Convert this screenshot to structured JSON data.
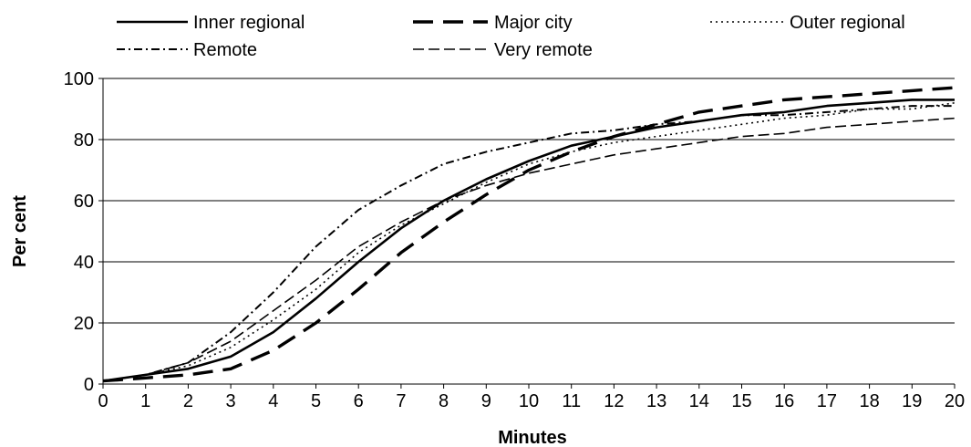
{
  "chart_data": {
    "type": "line",
    "title": "",
    "xlabel": "Minutes",
    "ylabel": "Per cent",
    "xlim": [
      0,
      20
    ],
    "ylim": [
      0,
      100
    ],
    "x_ticks": [
      "0",
      "1",
      "2",
      "3",
      "4",
      "5",
      "6",
      "7",
      "8",
      "9",
      "10",
      "11",
      "12",
      "13",
      "14",
      "15",
      "16",
      "17",
      "18",
      "19",
      "20"
    ],
    "y_ticks": [
      "0",
      "20",
      "40",
      "60",
      "80",
      "100"
    ],
    "grid": "horizontal",
    "legend_position": "top",
    "x": [
      0,
      1,
      2,
      3,
      4,
      5,
      6,
      7,
      8,
      9,
      10,
      11,
      12,
      13,
      14,
      15,
      16,
      17,
      18,
      19,
      20
    ],
    "series": [
      {
        "name": "Inner regional",
        "style": "solid",
        "values": [
          1,
          3,
          5,
          9,
          17,
          28,
          40,
          51,
          60,
          67,
          73,
          78,
          81,
          84,
          86,
          88,
          89,
          91,
          92,
          93,
          93
        ]
      },
      {
        "name": "Major city",
        "style": "long-dash",
        "values": [
          1,
          2,
          3,
          5,
          11,
          20,
          31,
          43,
          53,
          62,
          70,
          76,
          81,
          85,
          89,
          91,
          93,
          94,
          95,
          96,
          97
        ]
      },
      {
        "name": "Outer regional",
        "style": "dotted",
        "values": [
          1,
          3,
          6,
          12,
          21,
          31,
          43,
          52,
          59,
          66,
          72,
          76,
          79,
          81,
          83,
          85,
          87,
          88,
          90,
          90,
          92
        ]
      },
      {
        "name": "Remote",
        "style": "dash-dot",
        "values": [
          1,
          3,
          7,
          17,
          30,
          45,
          57,
          65,
          72,
          76,
          79,
          82,
          83,
          85,
          86,
          88,
          88,
          89,
          90,
          91,
          91
        ]
      },
      {
        "name": "Very remote",
        "style": "dashed",
        "values": [
          1,
          3,
          7,
          14,
          24,
          34,
          45,
          53,
          60,
          65,
          69,
          72,
          75,
          77,
          79,
          81,
          82,
          84,
          85,
          86,
          87
        ]
      }
    ],
    "colors": {
      "line": "#000000",
      "grid": "#000000",
      "background": "#ffffff"
    }
  }
}
